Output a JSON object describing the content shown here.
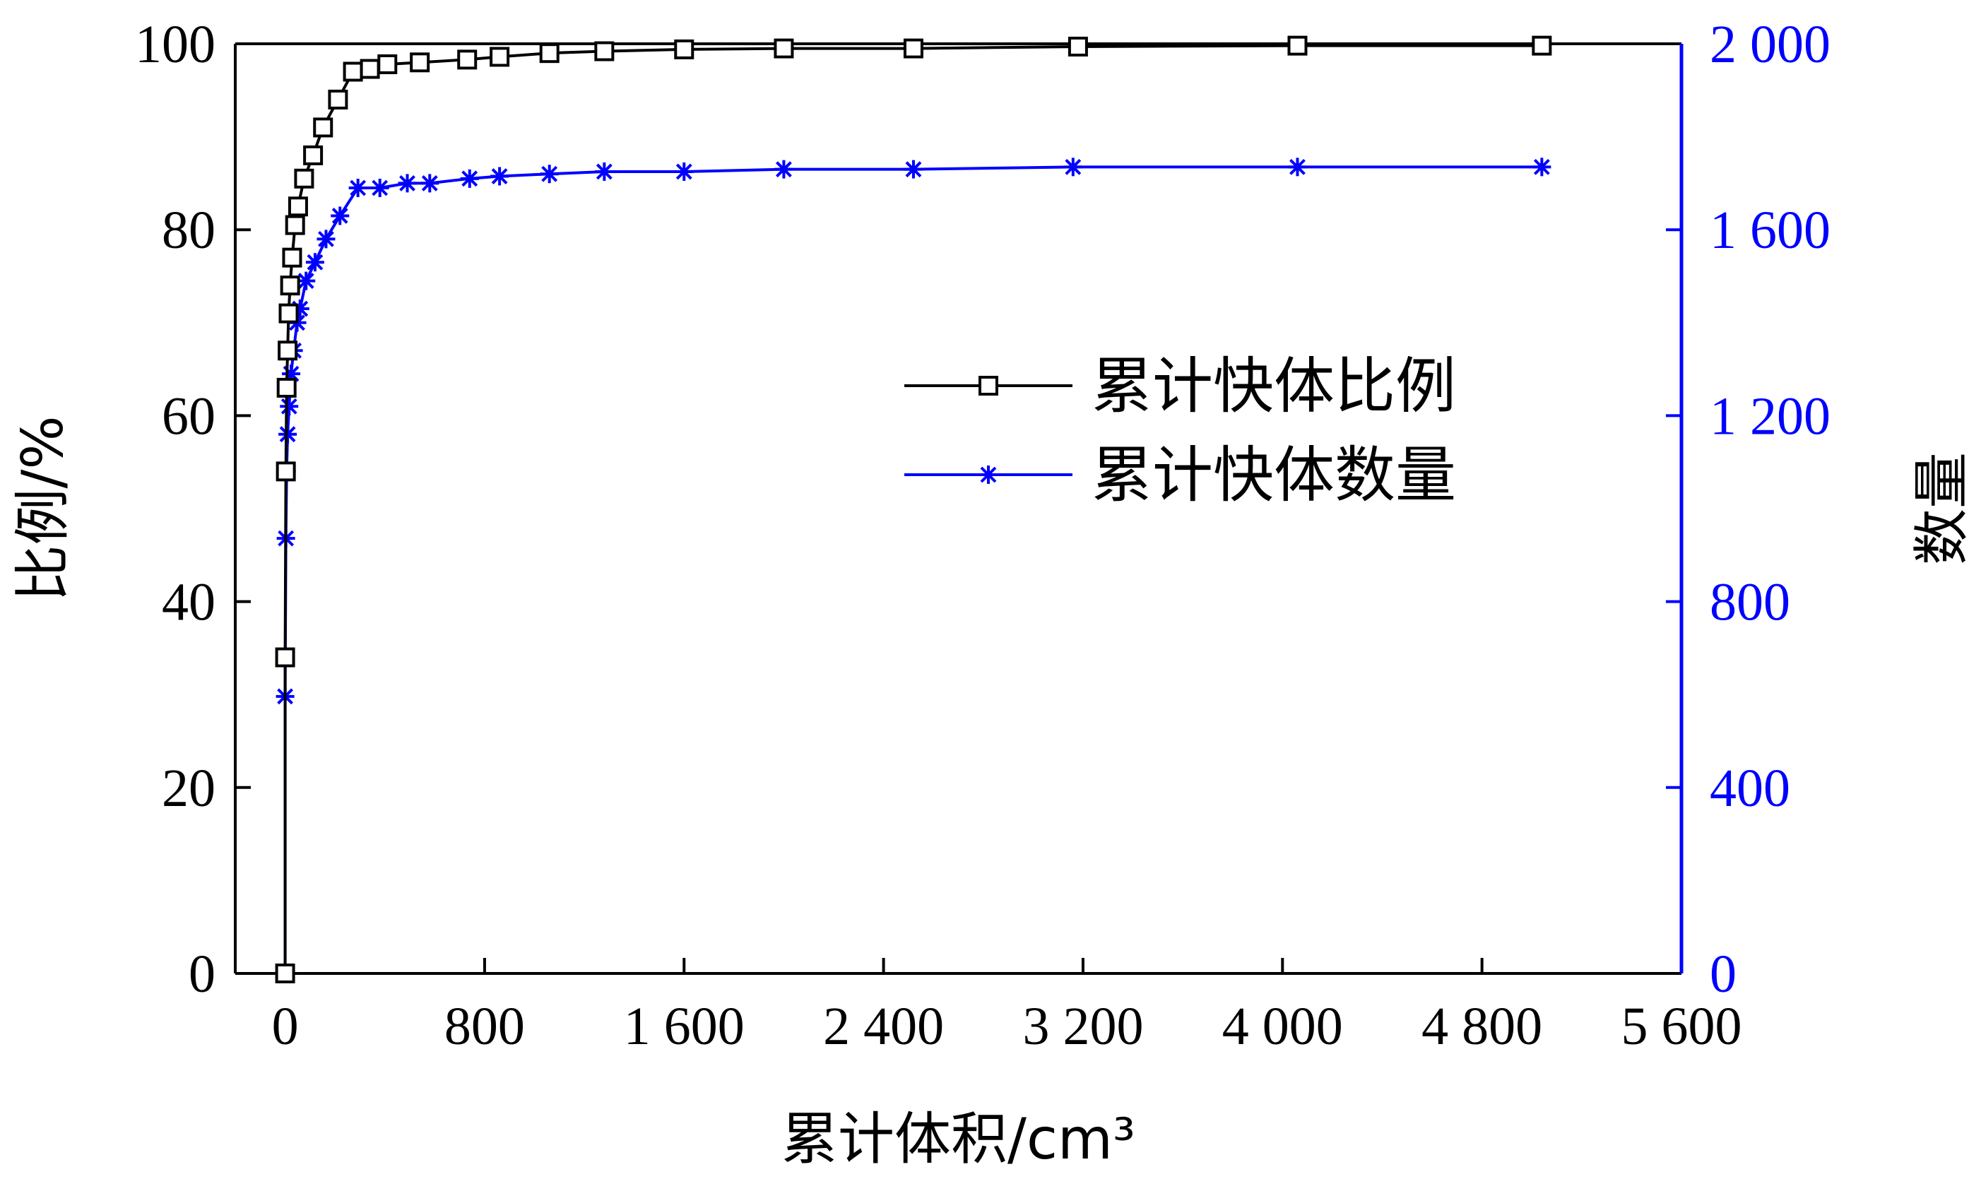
{
  "chart_data": {
    "type": "line",
    "xlabel": "累计体积/cm³",
    "ylabel_left": "比例/%",
    "ylabel_right": "数量",
    "xlim": [
      -200,
      5600
    ],
    "ylim_left": [
      0,
      100
    ],
    "ylim_right": [
      0,
      2000
    ],
    "x_ticks": [
      0,
      800,
      1600,
      2400,
      3200,
      4000,
      4800,
      5600
    ],
    "x_tick_labels": [
      "0",
      "800",
      "1 600",
      "2 400",
      "3 200",
      "4 000",
      "4 800",
      "5 600"
    ],
    "y_left_ticks": [
      0,
      20,
      40,
      60,
      80,
      100
    ],
    "y_left_tick_labels": [
      "0",
      "20",
      "40",
      "60",
      "80",
      "100"
    ],
    "y_right_ticks": [
      0,
      400,
      800,
      1200,
      1600,
      2000
    ],
    "y_right_tick_labels": [
      "0",
      "400",
      "800",
      "1 200",
      "1 600",
      "2 000"
    ],
    "grid": false,
    "legend_position": "center-right",
    "series": [
      {
        "name": "累计快体比例",
        "axis": "left",
        "color": "#000000",
        "marker": "square",
        "x": [
          0,
          0,
          3,
          6,
          10,
          14,
          20,
          28,
          40,
          52,
          76,
          112,
          152,
          212,
          272,
          340,
          410,
          540,
          730,
          860,
          1060,
          1280,
          1600,
          2000,
          2520,
          3180,
          4060,
          5040
        ],
        "y": [
          0,
          34,
          54,
          63,
          67,
          71,
          74,
          77,
          80.5,
          82.5,
          85.5,
          88,
          91,
          94,
          97,
          97.3,
          97.8,
          98,
          98.3,
          98.6,
          99,
          99.2,
          99.4,
          99.5,
          99.5,
          99.7,
          99.8,
          99.8
        ]
      },
      {
        "name": "累计快体数量",
        "axis": "right",
        "color": "#0000ff",
        "marker": "asterisk",
        "x": [
          0,
          0,
          3,
          6,
          10,
          16,
          24,
          34,
          48,
          60,
          84,
          120,
          164,
          220,
          292,
          380,
          490,
          580,
          740,
          860,
          1060,
          1280,
          1600,
          2000,
          2520,
          3160,
          4060,
          5040
        ],
        "y": [
          0,
          596,
          936,
          1080,
          1160,
          1220,
          1290,
          1340,
          1400,
          1430,
          1490,
          1530,
          1580,
          1630,
          1690,
          1690,
          1700,
          1700,
          1710,
          1715,
          1720,
          1725,
          1725,
          1730,
          1730,
          1735,
          1735,
          1735
        ]
      }
    ]
  }
}
